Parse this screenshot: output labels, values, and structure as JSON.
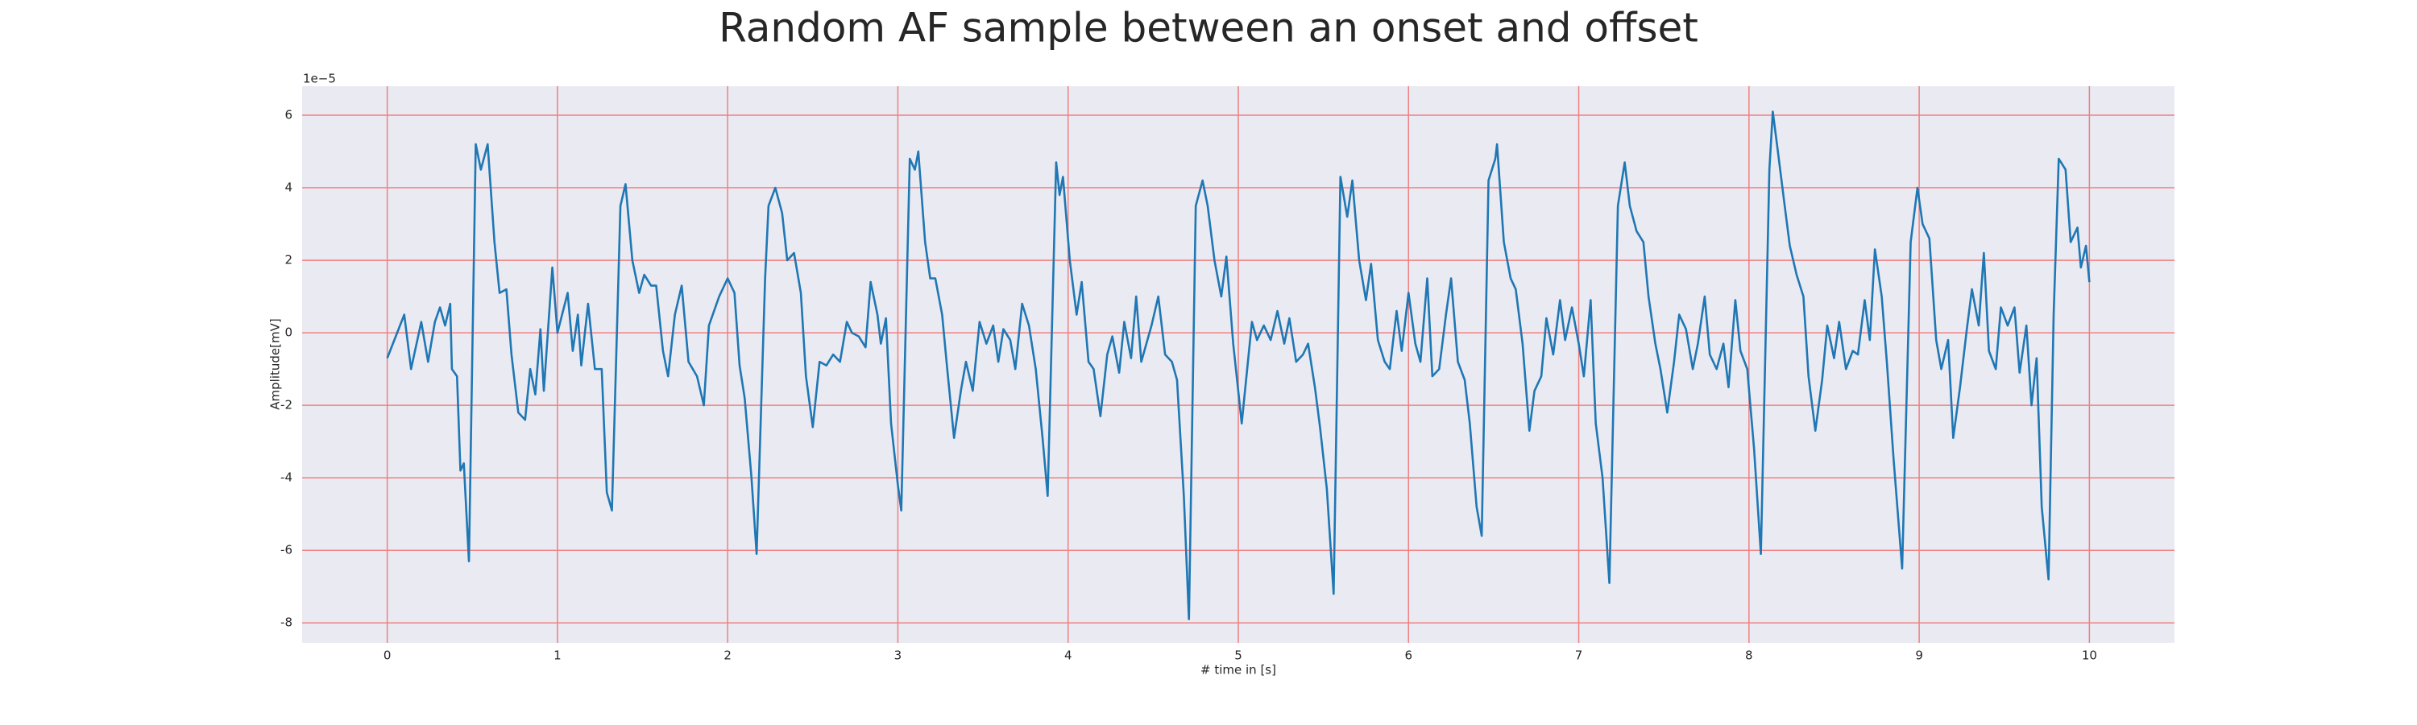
{
  "chart_data": {
    "type": "line",
    "title": "Random AF sample between an onset and offset",
    "xlabel": "# time in [s]",
    "ylabel": "Amplitude[mV]",
    "y_offset_label": "1e−5",
    "color": "#1f77b4",
    "grid": true,
    "grid_color": "#f08080",
    "background": "#eaeaf2",
    "xlim": [
      -0.5,
      10.5
    ],
    "ylim": [
      -8.55,
      6.8
    ],
    "xticks": [
      0,
      1,
      2,
      3,
      4,
      5,
      6,
      7,
      8,
      9,
      10
    ],
    "yticks": [
      -8,
      -6,
      -4,
      -2,
      0,
      2,
      4,
      6
    ],
    "x": [
      0,
      0.1,
      0.14,
      0.2,
      0.24,
      0.28,
      0.31,
      0.34,
      0.37,
      0.38,
      0.41,
      0.43,
      0.45,
      0.48,
      0.52,
      0.55,
      0.59,
      0.63,
      0.66,
      0.7,
      0.73,
      0.77,
      0.81,
      0.84,
      0.87,
      0.9,
      0.92,
      0.97,
      1.0,
      1.06,
      1.09,
      1.12,
      1.14,
      1.18,
      1.22,
      1.26,
      1.29,
      1.32,
      1.37,
      1.4,
      1.44,
      1.48,
      1.51,
      1.55,
      1.58,
      1.62,
      1.65,
      1.69,
      1.73,
      1.77,
      1.82,
      1.86,
      1.89,
      1.95,
      2.0,
      2.04,
      2.07,
      2.1,
      2.14,
      2.17,
      2.22,
      2.24,
      2.28,
      2.32,
      2.35,
      2.39,
      2.43,
      2.46,
      2.5,
      2.54,
      2.58,
      2.62,
      2.66,
      2.7,
      2.73,
      2.77,
      2.81,
      2.84,
      2.88,
      2.9,
      2.93,
      2.96,
      3.0,
      3.02,
      3.07,
      3.1,
      3.12,
      3.16,
      3.19,
      3.22,
      3.26,
      3.29,
      3.33,
      3.37,
      3.4,
      3.44,
      3.48,
      3.52,
      3.56,
      3.59,
      3.62,
      3.66,
      3.69,
      3.73,
      3.77,
      3.81,
      3.85,
      3.88,
      3.93,
      3.95,
      3.97,
      4.01,
      4.05,
      4.08,
      4.12,
      4.15,
      4.19,
      4.23,
      4.26,
      4.3,
      4.33,
      4.37,
      4.4,
      4.43,
      4.46,
      4.49,
      4.53,
      4.57,
      4.61,
      4.64,
      4.68,
      4.71,
      4.75,
      4.79,
      4.82,
      4.86,
      4.9,
      4.93,
      4.97,
      5.02,
      5.08,
      5.11,
      5.15,
      5.19,
      5.23,
      5.27,
      5.3,
      5.34,
      5.38,
      5.41,
      5.45,
      5.48,
      5.52,
      5.56,
      5.6,
      5.64,
      5.67,
      5.71,
      5.75,
      5.78,
      5.82,
      5.86,
      5.89,
      5.93,
      5.96,
      6.0,
      6.04,
      6.07,
      6.11,
      6.14,
      6.18,
      6.22,
      6.25,
      6.29,
      6.33,
      6.36,
      6.4,
      6.43,
      6.47,
      6.51,
      6.52,
      6.56,
      6.6,
      6.63,
      6.67,
      6.71,
      6.74,
      6.78,
      6.81,
      6.85,
      6.89,
      6.92,
      6.96,
      7.0,
      7.03,
      7.07,
      7.1,
      7.14,
      7.18,
      7.23,
      7.27,
      7.3,
      7.34,
      7.38,
      7.41,
      7.45,
      7.48,
      7.52,
      7.56,
      7.59,
      7.63,
      7.67,
      7.7,
      7.74,
      7.77,
      7.81,
      7.85,
      7.88,
      7.92,
      7.95,
      7.99,
      8.03,
      8.07,
      8.12,
      8.14,
      8.17,
      8.21,
      8.24,
      8.28,
      8.32,
      8.35,
      8.39,
      8.43,
      8.46,
      8.5,
      8.53,
      8.57,
      8.61,
      8.64,
      8.68,
      8.71,
      8.74,
      8.78,
      8.81,
      8.85,
      8.9,
      8.95,
      8.99,
      9.02,
      9.06,
      9.1,
      9.13,
      9.17,
      9.2,
      9.24,
      9.28,
      9.31,
      9.35,
      9.38,
      9.41,
      9.45,
      9.48,
      9.52,
      9.56,
      9.59,
      9.63,
      9.66,
      9.69,
      9.72,
      9.76,
      9.79,
      9.82,
      9.86,
      9.89,
      9.93,
      9.95,
      9.98,
      10.0
    ],
    "values": [
      -0.7,
      0.5,
      -1.0,
      0.3,
      -0.8,
      0.3,
      0.7,
      0.2,
      0.8,
      -1.0,
      -1.2,
      -3.8,
      -3.6,
      -6.3,
      5.2,
      4.5,
      5.2,
      2.5,
      1.1,
      1.2,
      -0.6,
      -2.2,
      -2.4,
      -1.0,
      -1.7,
      0.1,
      -1.6,
      1.8,
      0,
      1.1,
      -0.5,
      0.5,
      -0.9,
      0.8,
      -1.0,
      -1.0,
      -4.4,
      -4.9,
      3.5,
      4.1,
      2.0,
      1.1,
      1.6,
      1.3,
      1.3,
      -0.5,
      -1.2,
      0.5,
      1.3,
      -0.8,
      -1.2,
      -2.0,
      0.2,
      1.0,
      1.5,
      1.1,
      -0.9,
      -1.8,
      -4.0,
      -6.1,
      1.5,
      3.5,
      4.0,
      3.3,
      2.0,
      2.2,
      1.1,
      -1.2,
      -2.6,
      -0.8,
      -0.9,
      -0.6,
      -0.8,
      0.3,
      0.0,
      -0.1,
      -0.4,
      1.4,
      0.5,
      -0.3,
      0.4,
      -2.5,
      -4.2,
      -4.9,
      4.8,
      4.5,
      5.0,
      2.5,
      1.5,
      1.5,
      0.5,
      -1.0,
      -2.9,
      -1.6,
      -0.8,
      -1.6,
      0.3,
      -0.3,
      0.2,
      -0.8,
      0.1,
      -0.2,
      -1.0,
      0.8,
      0.2,
      -1.0,
      -2.9,
      -4.5,
      4.7,
      3.8,
      4.3,
      2.0,
      0.5,
      1.4,
      -0.8,
      -1.0,
      -2.3,
      -0.6,
      -0.1,
      -1.1,
      0.3,
      -0.7,
      1.0,
      -0.8,
      -0.3,
      0.2,
      1.0,
      -0.6,
      -0.8,
      -1.3,
      -4.5,
      -7.9,
      3.5,
      4.2,
      3.5,
      2.0,
      1.0,
      2.1,
      -0.3,
      -2.5,
      0.3,
      -0.2,
      0.2,
      -0.2,
      0.6,
      -0.3,
      0.4,
      -0.8,
      -0.6,
      -0.3,
      -1.5,
      -2.6,
      -4.3,
      -7.2,
      4.3,
      3.2,
      4.2,
      2.0,
      0.9,
      1.9,
      -0.2,
      -0.8,
      -1.0,
      0.6,
      -0.5,
      1.1,
      -0.3,
      -0.8,
      1.5,
      -1.2,
      -1.0,
      0.5,
      1.5,
      -0.8,
      -1.3,
      -2.5,
      -4.8,
      -5.6,
      4.2,
      4.8,
      5.2,
      2.5,
      1.5,
      1.2,
      -0.3,
      -2.7,
      -1.6,
      -1.2,
      0.4,
      -0.6,
      0.9,
      -0.2,
      0.7,
      -0.3,
      -1.2,
      0.9,
      -2.5,
      -4.0,
      -6.9,
      3.5,
      4.7,
      3.5,
      2.8,
      2.5,
      1.0,
      -0.3,
      -1.0,
      -2.2,
      -0.8,
      0.5,
      0.1,
      -1.0,
      -0.3,
      1.0,
      -0.6,
      -1.0,
      -0.3,
      -1.5,
      0.9,
      -0.5,
      -1.0,
      -3.2,
      -6.1,
      4.5,
      6.1,
      5.0,
      3.5,
      2.4,
      1.6,
      1.0,
      -1.2,
      -2.7,
      -1.3,
      0.2,
      -0.7,
      0.3,
      -1.0,
      -0.5,
      -0.6,
      0.9,
      -0.2,
      2.3,
      1.0,
      -0.8,
      -3.5,
      -6.5,
      2.5,
      4.0,
      3.0,
      2.6,
      -0.2,
      -1.0,
      -0.2,
      -2.9,
      -1.5,
      0.1,
      1.2,
      0.2,
      2.2,
      -0.5,
      -1.0,
      0.7,
      0.2,
      0.7,
      -1.1,
      0.2,
      -2.0,
      -0.7,
      -4.8,
      -6.8,
      0.5,
      4.8,
      4.5,
      2.5,
      2.9,
      1.8,
      2.4,
      1.4
    ]
  }
}
